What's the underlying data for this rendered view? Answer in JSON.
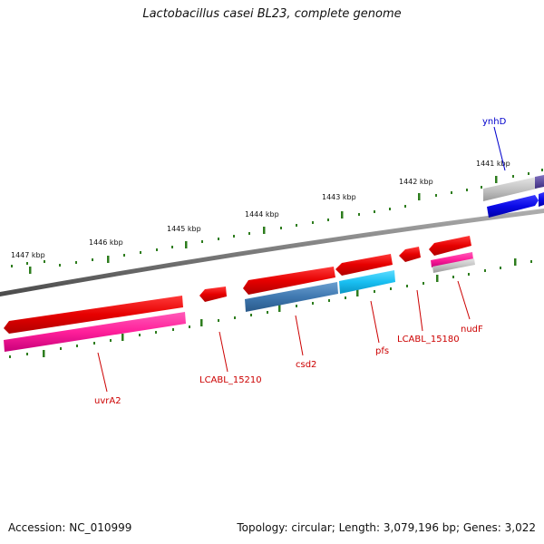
{
  "title": "Lactobacillus casei BL23, complete genome",
  "footer": {
    "accession": "Accession: NC_010999",
    "summary": "Topology: circular; Length: 3,079,196 bp; Genes: 3,022"
  },
  "colors": {
    "backbone": "#808080",
    "tick": "#2e7d1e",
    "label_red": "#cc0000",
    "label_blue": "#0000cc",
    "cds_red": "#e60000",
    "cds_magenta": "#ff1f9a",
    "cds_steel": "#3f78b0",
    "cds_cyan": "#19bff2",
    "cds_grey": "#bdbdbd",
    "cds_blue": "#0a0ae6",
    "cds_purple": "#5b4a9e"
  },
  "scale": {
    "ticks": [
      "1447 kbp",
      "1446 kbp",
      "1445 kbp",
      "1444 kbp",
      "1443 kbp",
      "1442 kbp",
      "1441 kbp"
    ]
  },
  "genes": [
    {
      "name": "uvrA2",
      "color": "label_red"
    },
    {
      "name": "LCABL_15210",
      "color": "label_red"
    },
    {
      "name": "csd2",
      "color": "label_red"
    },
    {
      "name": "pfs",
      "color": "label_red"
    },
    {
      "name": "LCABL_15180",
      "color": "label_red"
    },
    {
      "name": "nudF",
      "color": "label_red"
    },
    {
      "name": "ynhD",
      "color": "label_blue"
    }
  ]
}
